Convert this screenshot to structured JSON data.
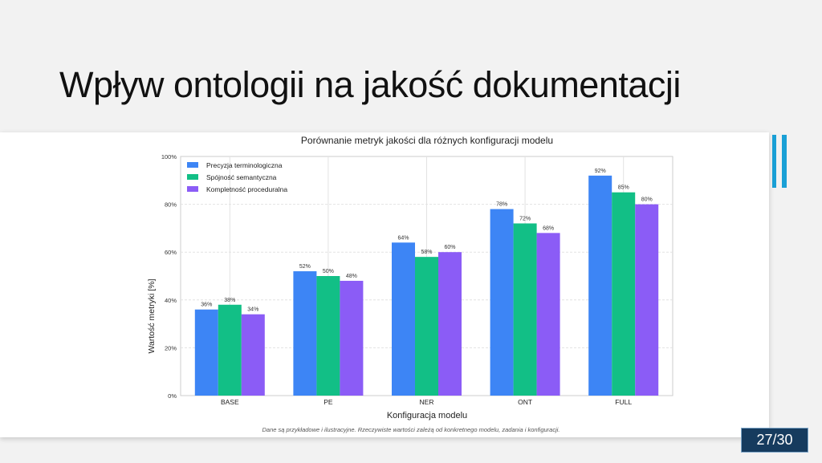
{
  "slide": {
    "title": "Wpływ ontologii na jakość dokumentacji",
    "page_number": "27/30",
    "accent_color": "#1aa0d6",
    "page_badge_color": "#163b5e"
  },
  "chart_data": {
    "type": "bar",
    "title": "Porównanie metryk jakości dla różnych konfiguracji modelu",
    "xlabel": "Konfiguracja modelu",
    "ylabel": "Wartość metryki [%]",
    "ylim": [
      0,
      100
    ],
    "yticks": [
      "0%",
      "20%",
      "40%",
      "60%",
      "80%",
      "100%"
    ],
    "grid": true,
    "legend_position": "top-left",
    "categories": [
      "BASE",
      "PE",
      "NER",
      "ONT",
      "FULL"
    ],
    "series": [
      {
        "name": "Precyzja terminologiczna",
        "color": "#3d85f5",
        "values": [
          36,
          52,
          64,
          78,
          92
        ],
        "labels": [
          "36%",
          "52%",
          "64%",
          "78%",
          "92%"
        ]
      },
      {
        "name": "Spójność semantyczna",
        "color": "#12bf86",
        "values": [
          38,
          50,
          58,
          72,
          85
        ],
        "labels": [
          "38%",
          "50%",
          "58%",
          "72%",
          "85%"
        ]
      },
      {
        "name": "Kompletność proceduralna",
        "color": "#8b5cf6",
        "values": [
          34,
          48,
          60,
          68,
          80
        ],
        "labels": [
          "34%",
          "48%",
          "60%",
          "68%",
          "80%"
        ]
      }
    ],
    "footnote": "Dane są przykładowe i ilustracyjne. Rzeczywiste wartości zależą od konkretnego modelu, zadania i konfiguracji."
  }
}
